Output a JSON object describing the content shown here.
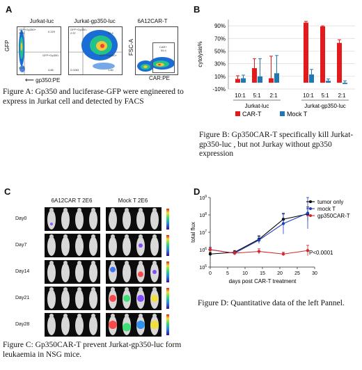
{
  "figure_a": {
    "label": "A",
    "panels": [
      {
        "title": "Jurkat-luc",
        "gates": [
          "GFP+Gp350+",
          "0.229",
          "95.9",
          "0.07",
          "GFP+Gp350-",
          "3.86"
        ]
      },
      {
        "title": "Jurkat-gp350-luc",
        "gates": [
          "GFP+Gp350-",
          "2.57",
          "91.6",
          "GFP+Gp350+",
          "0.0283",
          "1.80"
        ]
      },
      {
        "title": "6A12CAR-T",
        "gates": [
          "CAR+",
          "59.4"
        ]
      }
    ],
    "y_label_gfp": "GFP",
    "y_label_fsc": "FSC-A",
    "x_label_gp350": "gp350:PE",
    "x_label_car": "CAR:PE",
    "caption": "Figure A: Gp350 and luciferase-GFP were engineered to express in Jurkat cell and detected by FACS"
  },
  "figure_b": {
    "label": "B",
    "caption": "Figure B: Gp350CAR-T specifically kill Jurkat-gp350-luc , but not Jurkay without gp350 expression"
  },
  "figure_c": {
    "label": "C",
    "groups": [
      "6A12CAR T 2E6",
      "Mock T 2E6"
    ],
    "days": [
      "Day0",
      "Day7",
      "Day14",
      "Day21",
      "Day28"
    ],
    "caption": "Figure C: Gp350CAR-T prevent Jurkat-gp350-luc form leukaemia in NSG mice."
  },
  "figure_d": {
    "label": "D",
    "annotation": "P<0.0001",
    "caption": "Figure D: Quantitative data of the left Pannel."
  },
  "chart_data": [
    {
      "type": "bar",
      "panel": "B",
      "ylabel": "cytolysis%",
      "ylim": [
        -10,
        100
      ],
      "yticks": [
        "90%",
        "70%",
        "50%",
        "30%",
        "10%",
        "-10%"
      ],
      "ytick_values": [
        90,
        70,
        50,
        30,
        10,
        -10
      ],
      "categories": [
        "10:1",
        "5:1",
        "2:1",
        "10:1",
        "5:1",
        "2:1"
      ],
      "groups": [
        {
          "name": "Jurkat-luc",
          "span": [
            0,
            2
          ]
        },
        {
          "name": "Jurkat-gp350-luc",
          "span": [
            3,
            5
          ]
        }
      ],
      "series": [
        {
          "name": "CAR-T",
          "color": "#e31a1c",
          "values": [
            6,
            23,
            7,
            95,
            89,
            63
          ],
          "errors": [
            5,
            15,
            35,
            2,
            1,
            5
          ]
        },
        {
          "name": "Mock T",
          "color": "#1f77b4",
          "values": [
            7,
            10,
            15,
            13,
            3,
            -2
          ],
          "errors": [
            5,
            28,
            28,
            8,
            3,
            5
          ]
        }
      ],
      "legend": "bottom"
    },
    {
      "type": "line",
      "panel": "D",
      "xlabel": "days post CAR-T treatment",
      "ylabel": "total flux",
      "xlim": [
        0,
        30
      ],
      "xticks": [
        0,
        5,
        10,
        15,
        20,
        25,
        30
      ],
      "ylim_log10": [
        5,
        9
      ],
      "ytick_exponents": [
        5,
        6,
        7,
        8,
        9
      ],
      "ytick_base": "10",
      "legend": "top-right",
      "series": [
        {
          "name": "tumor only",
          "color": "#000000",
          "x": [
            0,
            7,
            14,
            21,
            28
          ],
          "y_log10": [
            5.75,
            5.85,
            6.6,
            7.75,
            8.05
          ],
          "err_log10": [
            0.1,
            0.1,
            0.2,
            0.3,
            0.4
          ]
        },
        {
          "name": "mock T",
          "color": "#1f3fbf",
          "x": [
            0,
            7,
            14,
            21,
            28
          ],
          "y_log10": [
            6.0,
            5.8,
            6.55,
            7.5,
            8.1
          ],
          "err_log10": [
            0.15,
            0.1,
            0.2,
            0.6,
            0.9
          ]
        },
        {
          "name": "gp350CAR-T",
          "color": "#d62728",
          "x": [
            0,
            7,
            14,
            21,
            28
          ],
          "y_log10": [
            6.0,
            5.8,
            5.9,
            5.75,
            5.95
          ],
          "err_log10": [
            0.1,
            0.1,
            0.15,
            0.1,
            0.3
          ]
        }
      ]
    }
  ]
}
